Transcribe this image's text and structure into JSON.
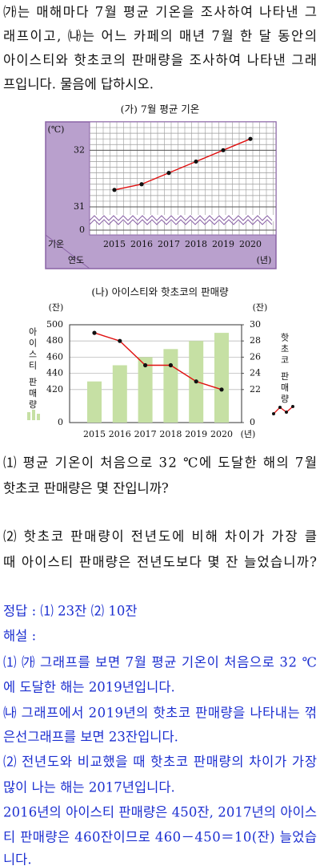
{
  "intro": [
    "㈎는 매해마다 7월 평균 기온을 조사하여 나타낸 그",
    "래프이고, ㈏는 어느 카페의 매년 7월 한 달 동안의",
    "아이스티와 핫초코의 판매량을 조사하여 나타낸 그래",
    "프입니다. 물음에 답하시오."
  ],
  "chart1": {
    "type": "line",
    "title": "(가) 7월 평균 기온",
    "y_unit": "(℃)",
    "y_label": "기온",
    "x_label": "연도",
    "x_unit": "(년)",
    "categories": [
      2015,
      2016,
      2017,
      2018,
      2019,
      2020
    ],
    "values": [
      31.3,
      31.4,
      31.6,
      31.8,
      32,
      32.2
    ],
    "color": "#e01010",
    "ylim": [
      31,
      32.5
    ],
    "yticks": [
      0,
      31,
      32
    ],
    "minor_step": 0.1,
    "axis_break": true
  },
  "chart2": {
    "type": "bar_line",
    "title": "(나) 아이스티와 핫초코의 판매량",
    "categories": [
      2015,
      2016,
      2017,
      2018,
      2019,
      2020
    ],
    "x_unit": "(년)",
    "y_unit": "(잔)",
    "y2_unit": "(잔)",
    "series": [
      {
        "name": "아이스티 판매량",
        "type": "bar",
        "color": "#c6e0a4",
        "values": [
          430,
          450,
          460,
          470,
          480,
          490
        ]
      },
      {
        "name": "핫초코 판매량",
        "type": "line",
        "axis": "y2",
        "color": "#e01010",
        "values": [
          29,
          28,
          25,
          25,
          23,
          22
        ]
      }
    ],
    "ylim": [
      400,
      500
    ],
    "yticks": [
      0,
      420,
      440,
      460,
      480,
      500
    ],
    "y2lim": [
      20,
      30
    ],
    "y2ticks": [
      0,
      22,
      24,
      26,
      28,
      30
    ],
    "axis_break": true
  },
  "questions": [
    [
      "⑴ 평균 기온이 처음으로 32 ℃에 도달한 해의 7월",
      "핫초코 판매량은 몇 잔입니까?"
    ],
    [
      "⑵ 핫초코 판매량이 전년도에 비해 차이가 가장 클",
      "때 아이스티 판매량은 전년도보다 몇 잔 늘었습니까?"
    ]
  ],
  "answer": [
    "정답 : ⑴ 23잔 ⑵ 10잔",
    "해설 :",
    "⑴ ㈎ 그래프를 보면 7월 평균 기온이 처음으로 32 ℃",
    "에 도달한 해는 2019년입니다.",
    "㈏ 그래프에서 2019년의 핫초코 판매량을 나타내는 꺾",
    "은선그래프를 보면 23잔입니다.",
    "⑵ 전년도와 비교했을 때 핫초코 판매량의 차이가 가장",
    "많이 나는 해는 2017년입니다.",
    "2016년의 아이스티 판매량은 450잔, 2017년의 아이스",
    "티 판매량은 460잔이므로 460－450＝10(잔) 늘었습",
    "니다."
  ]
}
